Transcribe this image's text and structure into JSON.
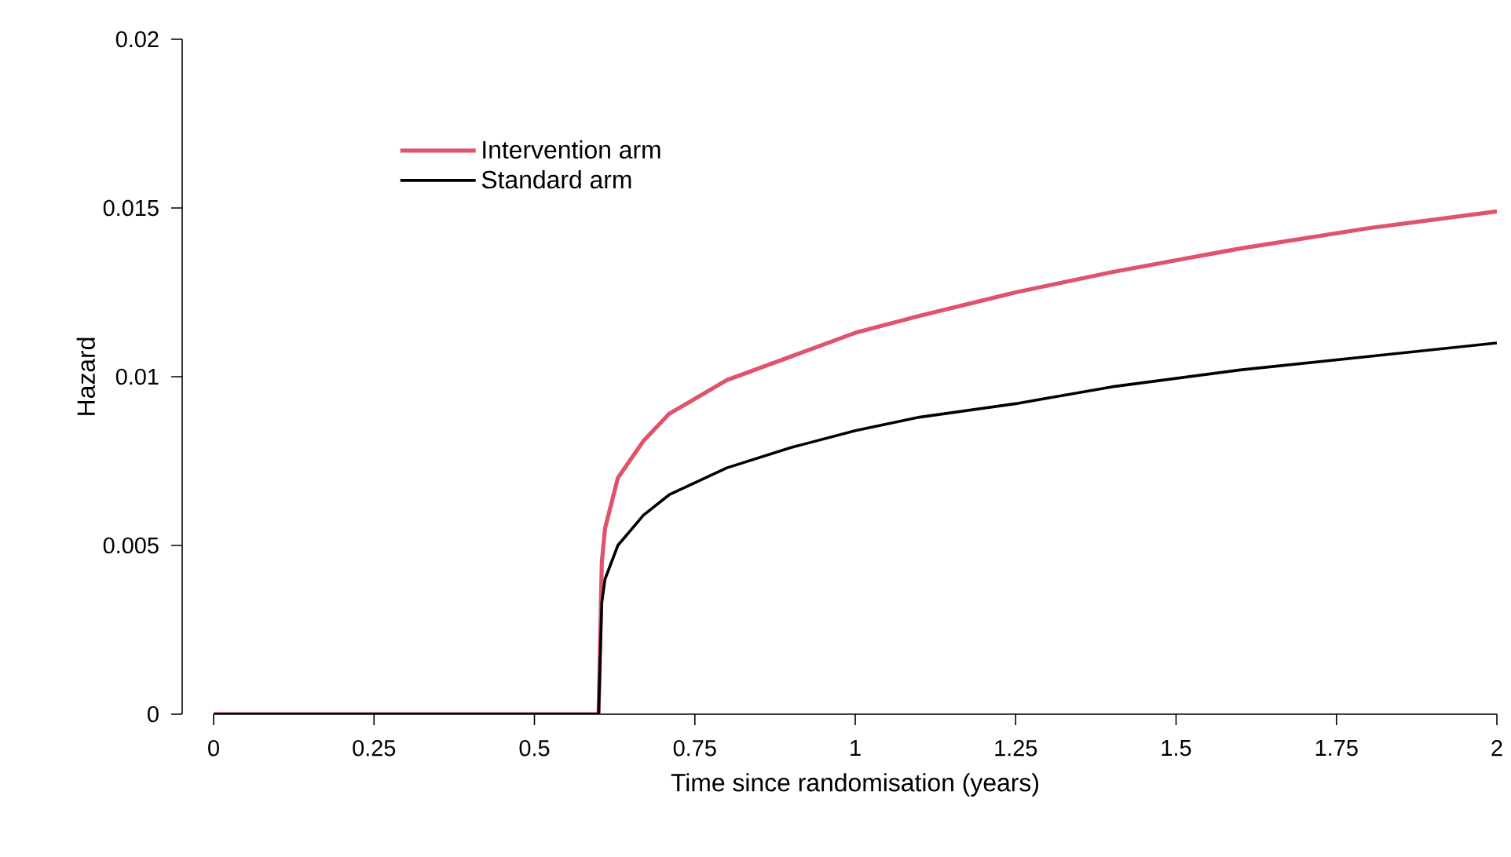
{
  "chart_data": {
    "type": "line",
    "xlabel": "Time since randomisation (years)",
    "ylabel": "Hazard",
    "xlim": [
      0,
      2
    ],
    "ylim": [
      0,
      0.02
    ],
    "xticks": [
      0,
      0.25,
      0.5,
      0.75,
      1,
      1.25,
      1.5,
      1.75,
      2
    ],
    "yticks": [
      0,
      0.005,
      0.01,
      0.015,
      0.02
    ],
    "grid": false,
    "legend": "top left",
    "marker": "none",
    "line_style": "solid",
    "series": [
      {
        "name": "Intervention arm",
        "color": "#df536b",
        "x": [
          0,
          0.6,
          0.605,
          0.61,
          0.63,
          0.67,
          0.71,
          0.8,
          0.9,
          1.0,
          1.1,
          1.25,
          1.4,
          1.6,
          1.8,
          2.0
        ],
        "values": [
          0,
          0,
          0.0045,
          0.0055,
          0.007,
          0.0081,
          0.0089,
          0.0099,
          0.0106,
          0.0113,
          0.0118,
          0.0125,
          0.0131,
          0.0138,
          0.0144,
          0.0149
        ]
      },
      {
        "name": "Standard arm",
        "color": "#000000",
        "x": [
          0,
          0.6,
          0.605,
          0.61,
          0.63,
          0.67,
          0.71,
          0.8,
          0.9,
          1.0,
          1.1,
          1.25,
          1.4,
          1.6,
          1.8,
          2.0
        ],
        "values": [
          0,
          0,
          0.0033,
          0.004,
          0.005,
          0.0059,
          0.0065,
          0.0073,
          0.0079,
          0.0084,
          0.0088,
          0.0092,
          0.0097,
          0.0102,
          0.0106,
          0.011
        ]
      }
    ]
  }
}
